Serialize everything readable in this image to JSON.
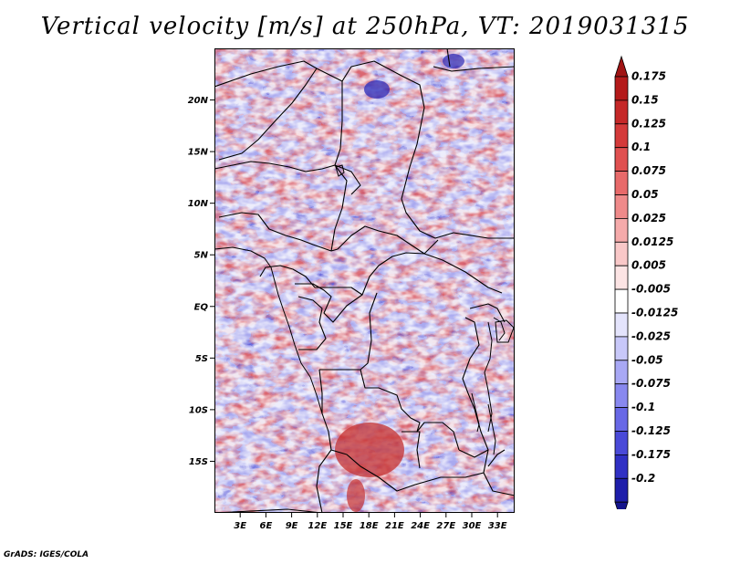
{
  "title": "Vertical velocity [m/s] at 250hPa, VT: 2019031315",
  "credit": "GrADS: IGES/COLA",
  "map": {
    "lon_range": [
      0,
      35
    ],
    "lat_range": [
      -20,
      25
    ],
    "lat_ticks": [
      {
        "value": 20,
        "label": "20N"
      },
      {
        "value": 15,
        "label": "15N"
      },
      {
        "value": 10,
        "label": "10N"
      },
      {
        "value": 5,
        "label": "5N"
      },
      {
        "value": 0,
        "label": "EQ"
      },
      {
        "value": -5,
        "label": "5S"
      },
      {
        "value": -10,
        "label": "10S"
      },
      {
        "value": -15,
        "label": "15S"
      }
    ],
    "lon_ticks": [
      {
        "value": 3,
        "label": "3E"
      },
      {
        "value": 6,
        "label": "6E"
      },
      {
        "value": 9,
        "label": "9E"
      },
      {
        "value": 12,
        "label": "12E"
      },
      {
        "value": 15,
        "label": "15E"
      },
      {
        "value": 18,
        "label": "18E"
      },
      {
        "value": 21,
        "label": "21E"
      },
      {
        "value": 24,
        "label": "24E"
      },
      {
        "value": 27,
        "label": "27E"
      },
      {
        "value": 30,
        "label": "30E"
      },
      {
        "value": 33,
        "label": "33E"
      }
    ]
  },
  "colorbar": {
    "levels": [
      {
        "label": "0.175",
        "color": "#b41a1a"
      },
      {
        "label": "0.15",
        "color": "#c52828"
      },
      {
        "label": "0.125",
        "color": "#d43a3a"
      },
      {
        "label": "0.1",
        "color": "#e05050"
      },
      {
        "label": "0.075",
        "color": "#e86a6a"
      },
      {
        "label": "0.05",
        "color": "#ef8a8a"
      },
      {
        "label": "0.025",
        "color": "#f5aaaa"
      },
      {
        "label": "0.0125",
        "color": "#f9c8c8"
      },
      {
        "label": "0.005",
        "color": "#fce4e4"
      },
      {
        "label": "-0.005",
        "color": "#ffffff"
      },
      {
        "label": "-0.0125",
        "color": "#e4e4fc"
      },
      {
        "label": "-0.025",
        "color": "#c8c8f9"
      },
      {
        "label": "-0.05",
        "color": "#a8a8f5"
      },
      {
        "label": "-0.075",
        "color": "#8888ef"
      },
      {
        "label": "-0.1",
        "color": "#6868e6"
      },
      {
        "label": "-0.125",
        "color": "#4a4ad8"
      },
      {
        "label": "-0.175",
        "color": "#3030c4"
      },
      {
        "label": "-0.2",
        "color": "#1e1eaa"
      }
    ],
    "top_cap_color": "#a01414",
    "bottom_cap_color": "#14148c"
  }
}
